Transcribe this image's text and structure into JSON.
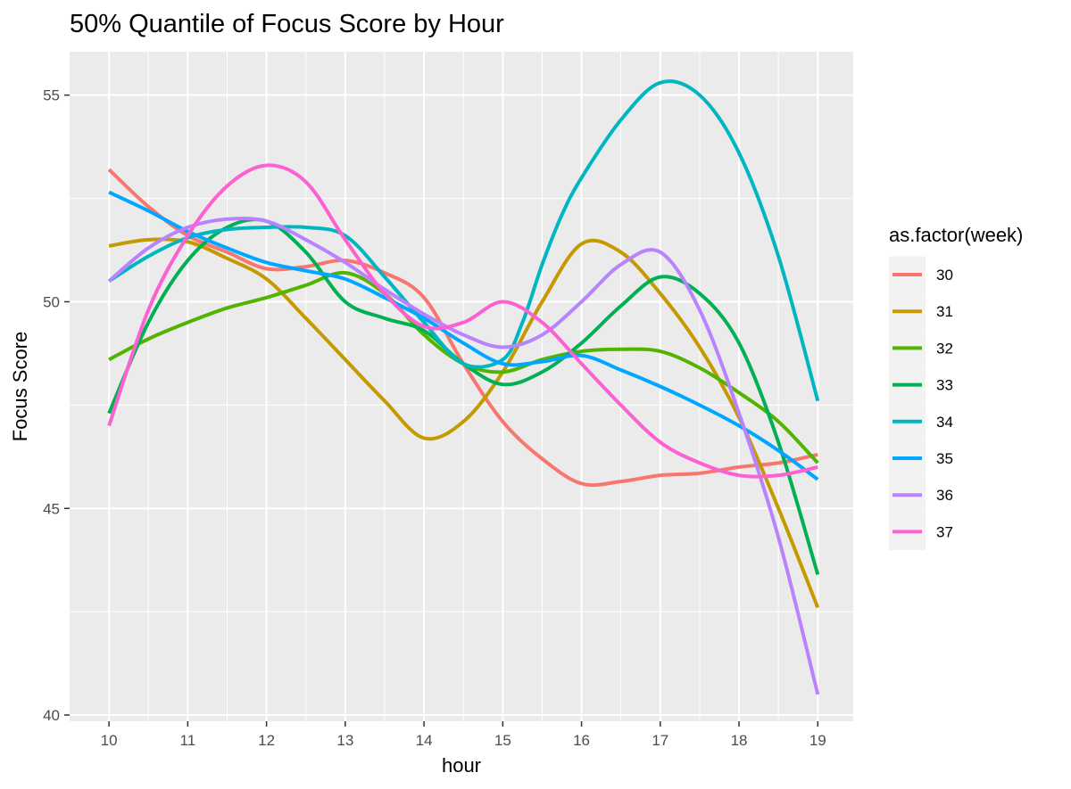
{
  "chart_data": {
    "type": "line",
    "title": "50% Quantile of Focus Score by Hour",
    "xlabel": "hour",
    "ylabel": "Focus Score",
    "xlim": [
      9.5,
      19.45
    ],
    "ylim": [
      39.85,
      56.05
    ],
    "x_ticks": [
      10,
      11,
      12,
      13,
      14,
      15,
      16,
      17,
      18,
      19
    ],
    "x_tick_labels": [
      "10",
      "11",
      "12",
      "13",
      "14",
      "15",
      "16",
      "17",
      "18",
      "19"
    ],
    "y_ticks": [
      40,
      45,
      50,
      55
    ],
    "y_tick_labels": [
      "40",
      "45",
      "50",
      "55"
    ],
    "grid": true,
    "legend": {
      "title": "as.factor(week)",
      "position": "right"
    },
    "series": [
      {
        "name": "30",
        "color": "#F8766D",
        "x": [
          10,
          10.5,
          11,
          11.5,
          12,
          12.5,
          13,
          13.5,
          14,
          14.5,
          15,
          15.5,
          16,
          16.5,
          17,
          17.5,
          18,
          18.5,
          19
        ],
        "y": [
          53.2,
          52.3,
          51.6,
          51.2,
          50.8,
          50.85,
          51.0,
          50.7,
          50.1,
          48.5,
          47.1,
          46.2,
          45.6,
          45.65,
          45.8,
          45.85,
          46.0,
          46.1,
          46.3
        ]
      },
      {
        "name": "31",
        "color": "#C49A00",
        "x": [
          10,
          10.5,
          11,
          11.5,
          12,
          12.5,
          13,
          13.5,
          14,
          14.5,
          15,
          15.5,
          16,
          16.5,
          17,
          17.5,
          18,
          18.5,
          19
        ],
        "y": [
          51.35,
          51.5,
          51.45,
          51.05,
          50.55,
          49.6,
          48.6,
          47.6,
          46.7,
          47.1,
          48.3,
          50.0,
          51.4,
          51.2,
          50.2,
          48.9,
          47.2,
          45.0,
          42.6
        ]
      },
      {
        "name": "32",
        "color": "#53B400",
        "x": [
          10,
          10.5,
          11,
          11.5,
          12,
          12.5,
          13,
          13.5,
          14,
          14.5,
          15,
          15.5,
          16,
          16.5,
          17,
          17.5,
          18,
          18.5,
          19
        ],
        "y": [
          48.6,
          49.1,
          49.5,
          49.85,
          50.1,
          50.4,
          50.7,
          50.2,
          49.2,
          48.5,
          48.3,
          48.6,
          48.8,
          48.85,
          48.8,
          48.4,
          47.8,
          47.1,
          46.1
        ]
      },
      {
        "name": "33",
        "color": "#00B052",
        "x": [
          10,
          10.5,
          11,
          11.5,
          12,
          12.5,
          13,
          13.5,
          14,
          14.5,
          15,
          15.5,
          16,
          16.5,
          17,
          17.5,
          18,
          18.5,
          19
        ],
        "y": [
          47.3,
          49.5,
          51.0,
          51.8,
          51.95,
          51.2,
          50.0,
          49.6,
          49.3,
          48.5,
          48.0,
          48.3,
          49.0,
          49.9,
          50.6,
          50.2,
          49.0,
          46.6,
          43.4
        ]
      },
      {
        "name": "34",
        "color": "#00B6C1",
        "x": [
          10,
          10.5,
          11,
          11.5,
          12,
          12.5,
          13,
          13.5,
          14,
          14.5,
          15,
          15.25,
          15.5,
          15.75,
          16,
          16.5,
          17,
          17.5,
          18,
          18.5,
          19
        ],
        "y": [
          50.5,
          51.1,
          51.55,
          51.75,
          51.8,
          51.8,
          51.6,
          50.6,
          49.5,
          48.5,
          48.6,
          49.5,
          50.9,
          52.1,
          53.0,
          54.4,
          55.3,
          55.0,
          53.6,
          51.1,
          47.6
        ]
      },
      {
        "name": "35",
        "color": "#00A6FF",
        "x": [
          10,
          10.5,
          11,
          11.5,
          12,
          12.5,
          13,
          13.5,
          14,
          14.5,
          15,
          15.5,
          16,
          16.5,
          17,
          17.5,
          18,
          18.5,
          19
        ],
        "y": [
          52.65,
          52.2,
          51.7,
          51.3,
          50.95,
          50.75,
          50.55,
          50.1,
          49.6,
          49.0,
          48.5,
          48.55,
          48.7,
          48.35,
          47.95,
          47.5,
          47.0,
          46.4,
          45.7
        ]
      },
      {
        "name": "36",
        "color": "#B983FF",
        "x": [
          10,
          10.5,
          11,
          11.5,
          12,
          12.5,
          13,
          13.5,
          14,
          14.5,
          15,
          15.5,
          16,
          16.5,
          17,
          17.5,
          18,
          18.5,
          19
        ],
        "y": [
          50.5,
          51.3,
          51.8,
          52.0,
          51.95,
          51.5,
          50.95,
          50.3,
          49.7,
          49.2,
          48.9,
          49.2,
          50.0,
          50.9,
          51.2,
          49.8,
          47.3,
          44.3,
          40.5
        ]
      },
      {
        "name": "37",
        "color": "#FD61D1",
        "x": [
          10,
          10.5,
          11,
          11.5,
          12,
          12.5,
          13,
          13.5,
          14,
          14.5,
          15,
          15.5,
          16,
          16.5,
          17,
          17.5,
          18,
          18.5,
          19
        ],
        "y": [
          47.0,
          49.8,
          51.6,
          52.8,
          53.3,
          52.9,
          51.5,
          50.2,
          49.4,
          49.5,
          50.0,
          49.5,
          48.5,
          47.5,
          46.6,
          46.1,
          45.8,
          45.8,
          46.0
        ]
      }
    ]
  }
}
